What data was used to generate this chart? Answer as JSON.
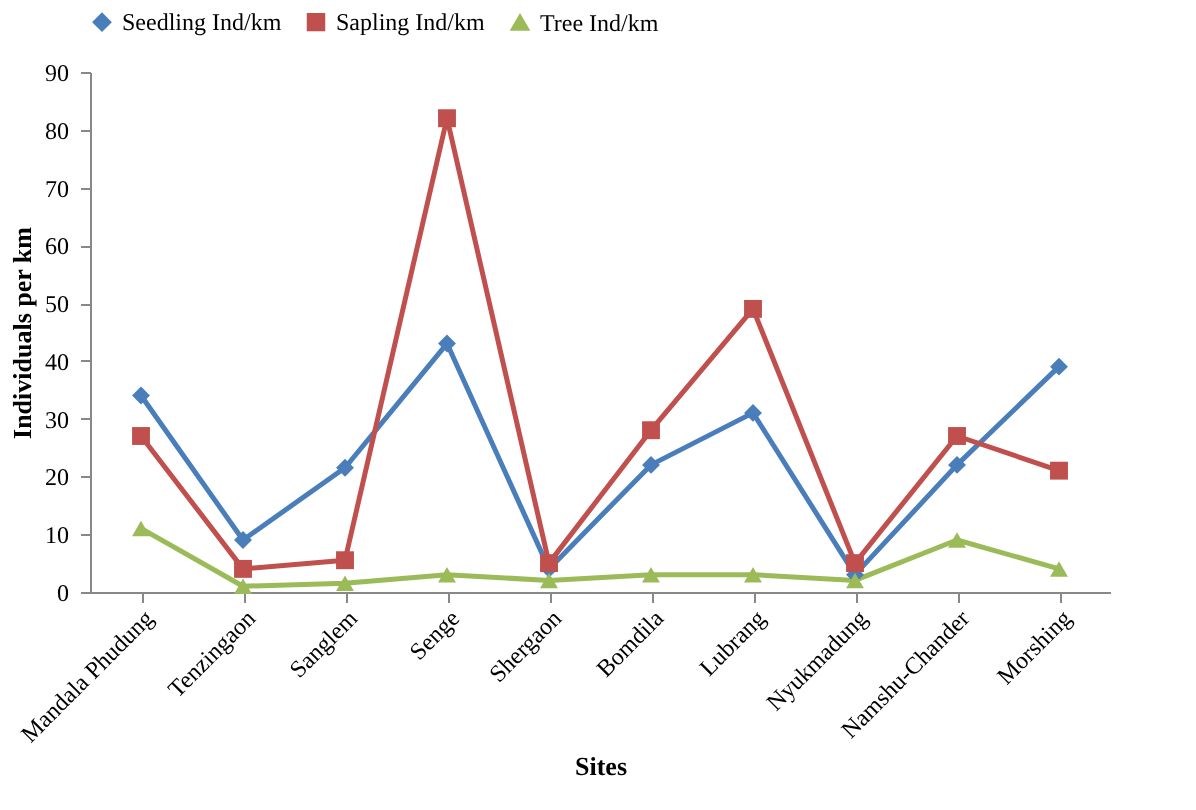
{
  "chart_data": {
    "type": "line",
    "xlabel": "Sites",
    "ylabel": "Individuals per km",
    "categories": [
      "Mandala Phudung",
      "Tenzingaon",
      "Sanglem",
      "Senge",
      "Shergaon",
      "Bomdila",
      "Lubrang",
      "Nyukmadung",
      "Namshu-Chander",
      "Morshing"
    ],
    "series": [
      {
        "name": "Seedling Ind/km",
        "color": "#4a7ebb",
        "marker": "diamond",
        "values": [
          34,
          9,
          21.5,
          43,
          4,
          22,
          31,
          3,
          22,
          39
        ]
      },
      {
        "name": "Sapling Ind/km",
        "color": "#c0504d",
        "marker": "square",
        "values": [
          27,
          4,
          5.5,
          82,
          5,
          28,
          49,
          5,
          27,
          21
        ]
      },
      {
        "name": "Tree Ind/km",
        "color": "#9bbb59",
        "marker": "triangle",
        "values": [
          11,
          1,
          1.5,
          3,
          2,
          3,
          3,
          2,
          9,
          4
        ]
      }
    ],
    "ylim": [
      0,
      90
    ],
    "yticks": [
      0,
      10,
      20,
      30,
      40,
      50,
      60,
      70,
      80,
      90
    ],
    "grid": false,
    "legend": "top"
  }
}
